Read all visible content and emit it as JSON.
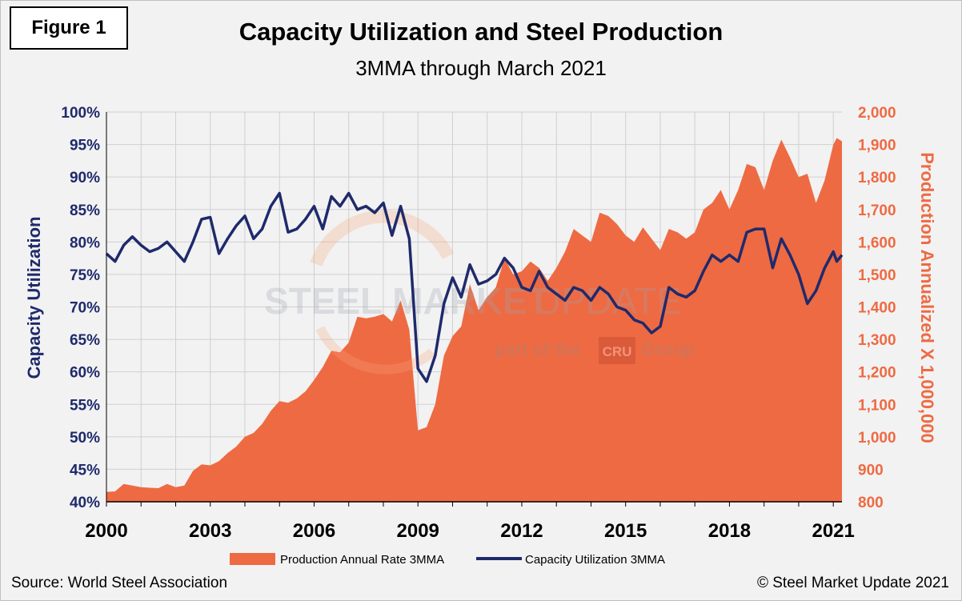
{
  "figure_label": "Figure 1",
  "title": "Capacity Utilization and Steel Production",
  "subtitle": "3MMA through March 2021",
  "source": "Source: World Steel Association",
  "copyright": "© Steel Market Update 2021",
  "watermark": {
    "line1_a": "STEEL MARKET",
    "line1_b": "UPDATE",
    "line2_a": "part of the",
    "line2_logo": "CRU",
    "line2_b": "Group"
  },
  "colors": {
    "production": "#ee6a43",
    "utilization": "#1f2a6b",
    "left_axis": "#1f2a6b",
    "right_axis": "#ee6a43",
    "grid": "#d0d0d0"
  },
  "chart_data": {
    "type": "area+line",
    "title": "Capacity Utilization and Steel Production",
    "subtitle": "3MMA through March 2021",
    "ylabel_left": "Capacity Utilization",
    "ylabel_right": "Production Annualized X 1,000,000",
    "left_axis": {
      "min": 40,
      "max": 100,
      "step": 5,
      "unit": "%",
      "ticks": [
        "40%",
        "45%",
        "50%",
        "55%",
        "60%",
        "65%",
        "70%",
        "75%",
        "80%",
        "85%",
        "90%",
        "95%",
        "100%"
      ]
    },
    "right_axis": {
      "min": 800,
      "max": 2000,
      "step": 100,
      "ticks": [
        "800",
        "900",
        "1,000",
        "1,100",
        "1,200",
        "1,300",
        "1,400",
        "1,500",
        "1,600",
        "1,700",
        "1,800",
        "1,900",
        "2,000"
      ]
    },
    "x_axis": {
      "start": 2000.0,
      "end": 2021.25,
      "ticks": [
        "2000",
        "2003",
        "2006",
        "2009",
        "2012",
        "2015",
        "2018",
        "2021"
      ]
    },
    "grid": true,
    "legend_position": "bottom",
    "series": [
      {
        "name": "Production Annual Rate 3MMA",
        "kind": "area",
        "axis": "right",
        "points": [
          [
            2000.0,
            830
          ],
          [
            2000.25,
            832
          ],
          [
            2000.5,
            855
          ],
          [
            2000.75,
            850
          ],
          [
            2001.0,
            845
          ],
          [
            2001.25,
            843
          ],
          [
            2001.5,
            842
          ],
          [
            2001.75,
            855
          ],
          [
            2002.0,
            845
          ],
          [
            2002.25,
            850
          ],
          [
            2002.5,
            895
          ],
          [
            2002.75,
            915
          ],
          [
            2003.0,
            912
          ],
          [
            2003.25,
            925
          ],
          [
            2003.5,
            950
          ],
          [
            2003.75,
            970
          ],
          [
            2004.0,
            1000
          ],
          [
            2004.25,
            1012
          ],
          [
            2004.5,
            1040
          ],
          [
            2004.75,
            1080
          ],
          [
            2005.0,
            1110
          ],
          [
            2005.25,
            1105
          ],
          [
            2005.5,
            1118
          ],
          [
            2005.75,
            1140
          ],
          [
            2006.0,
            1175
          ],
          [
            2006.25,
            1215
          ],
          [
            2006.5,
            1265
          ],
          [
            2006.75,
            1260
          ],
          [
            2007.0,
            1290
          ],
          [
            2007.25,
            1370
          ],
          [
            2007.5,
            1365
          ],
          [
            2007.75,
            1370
          ],
          [
            2008.0,
            1378
          ],
          [
            2008.25,
            1355
          ],
          [
            2008.5,
            1420
          ],
          [
            2008.75,
            1330
          ],
          [
            2009.0,
            1020
          ],
          [
            2009.25,
            1030
          ],
          [
            2009.5,
            1100
          ],
          [
            2009.75,
            1250
          ],
          [
            2010.0,
            1310
          ],
          [
            2010.25,
            1340
          ],
          [
            2010.5,
            1470
          ],
          [
            2010.75,
            1390
          ],
          [
            2011.0,
            1430
          ],
          [
            2011.25,
            1460
          ],
          [
            2011.5,
            1550
          ],
          [
            2011.75,
            1500
          ],
          [
            2012.0,
            1510
          ],
          [
            2012.25,
            1540
          ],
          [
            2012.5,
            1520
          ],
          [
            2012.75,
            1480
          ],
          [
            2013.0,
            1520
          ],
          [
            2013.25,
            1570
          ],
          [
            2013.5,
            1640
          ],
          [
            2013.75,
            1620
          ],
          [
            2014.0,
            1600
          ],
          [
            2014.25,
            1690
          ],
          [
            2014.5,
            1680
          ],
          [
            2014.75,
            1655
          ],
          [
            2015.0,
            1620
          ],
          [
            2015.25,
            1600
          ],
          [
            2015.5,
            1645
          ],
          [
            2015.75,
            1610
          ],
          [
            2016.0,
            1575
          ],
          [
            2016.25,
            1640
          ],
          [
            2016.5,
            1630
          ],
          [
            2016.75,
            1610
          ],
          [
            2017.0,
            1630
          ],
          [
            2017.25,
            1700
          ],
          [
            2017.5,
            1720
          ],
          [
            2017.75,
            1760
          ],
          [
            2018.0,
            1700
          ],
          [
            2018.25,
            1760
          ],
          [
            2018.5,
            1840
          ],
          [
            2018.75,
            1830
          ],
          [
            2019.0,
            1760
          ],
          [
            2019.25,
            1850
          ],
          [
            2019.5,
            1915
          ],
          [
            2019.75,
            1860
          ],
          [
            2020.0,
            1800
          ],
          [
            2020.25,
            1810
          ],
          [
            2020.5,
            1720
          ],
          [
            2020.75,
            1790
          ],
          [
            2021.0,
            1900
          ],
          [
            2021.1,
            1920
          ],
          [
            2021.25,
            1910
          ]
        ]
      },
      {
        "name": "Capacity Utilization 3MMA",
        "kind": "line",
        "axis": "left",
        "points": [
          [
            2000.0,
            78.2
          ],
          [
            2000.25,
            77.0
          ],
          [
            2000.5,
            79.5
          ],
          [
            2000.75,
            80.8
          ],
          [
            2001.0,
            79.5
          ],
          [
            2001.25,
            78.5
          ],
          [
            2001.5,
            79.0
          ],
          [
            2001.75,
            80.0
          ],
          [
            2002.0,
            78.5
          ],
          [
            2002.25,
            77.0
          ],
          [
            2002.5,
            80.0
          ],
          [
            2002.75,
            83.5
          ],
          [
            2003.0,
            83.8
          ],
          [
            2003.25,
            78.2
          ],
          [
            2003.5,
            80.5
          ],
          [
            2003.75,
            82.5
          ],
          [
            2004.0,
            84.0
          ],
          [
            2004.25,
            80.5
          ],
          [
            2004.5,
            82.0
          ],
          [
            2004.75,
            85.5
          ],
          [
            2005.0,
            87.5
          ],
          [
            2005.25,
            81.5
          ],
          [
            2005.5,
            82.0
          ],
          [
            2005.75,
            83.5
          ],
          [
            2006.0,
            85.5
          ],
          [
            2006.25,
            82.0
          ],
          [
            2006.5,
            87.0
          ],
          [
            2006.75,
            85.5
          ],
          [
            2007.0,
            87.5
          ],
          [
            2007.25,
            85.0
          ],
          [
            2007.5,
            85.5
          ],
          [
            2007.75,
            84.5
          ],
          [
            2008.0,
            86.0
          ],
          [
            2008.25,
            81.0
          ],
          [
            2008.5,
            85.5
          ],
          [
            2008.75,
            80.5
          ],
          [
            2009.0,
            60.5
          ],
          [
            2009.25,
            58.5
          ],
          [
            2009.5,
            62.5
          ],
          [
            2009.75,
            70.5
          ],
          [
            2010.0,
            74.5
          ],
          [
            2010.25,
            71.5
          ],
          [
            2010.5,
            76.5
          ],
          [
            2010.75,
            73.5
          ],
          [
            2011.0,
            74.0
          ],
          [
            2011.25,
            75.0
          ],
          [
            2011.5,
            77.5
          ],
          [
            2011.75,
            76.0
          ],
          [
            2012.0,
            73.0
          ],
          [
            2012.25,
            72.5
          ],
          [
            2012.5,
            75.5
          ],
          [
            2012.75,
            73.0
          ],
          [
            2013.0,
            72.0
          ],
          [
            2013.25,
            71.0
          ],
          [
            2013.5,
            73.0
          ],
          [
            2013.75,
            72.5
          ],
          [
            2014.0,
            71.0
          ],
          [
            2014.25,
            73.0
          ],
          [
            2014.5,
            72.0
          ],
          [
            2014.75,
            70.0
          ],
          [
            2015.0,
            69.5
          ],
          [
            2015.25,
            68.0
          ],
          [
            2015.5,
            67.5
          ],
          [
            2015.75,
            66.0
          ],
          [
            2016.0,
            67.0
          ],
          [
            2016.25,
            73.0
          ],
          [
            2016.5,
            72.0
          ],
          [
            2016.75,
            71.5
          ],
          [
            2017.0,
            72.5
          ],
          [
            2017.25,
            75.5
          ],
          [
            2017.5,
            78.0
          ],
          [
            2017.75,
            77.0
          ],
          [
            2018.0,
            78.0
          ],
          [
            2018.25,
            77.0
          ],
          [
            2018.5,
            81.5
          ],
          [
            2018.75,
            82.0
          ],
          [
            2019.0,
            82.0
          ],
          [
            2019.25,
            76.0
          ],
          [
            2019.5,
            80.5
          ],
          [
            2019.75,
            78.0
          ],
          [
            2020.0,
            75.0
          ],
          [
            2020.25,
            70.5
          ],
          [
            2020.5,
            72.5
          ],
          [
            2020.75,
            76.0
          ],
          [
            2021.0,
            78.5
          ],
          [
            2021.1,
            77.0
          ],
          [
            2021.25,
            78.0
          ]
        ]
      }
    ]
  }
}
